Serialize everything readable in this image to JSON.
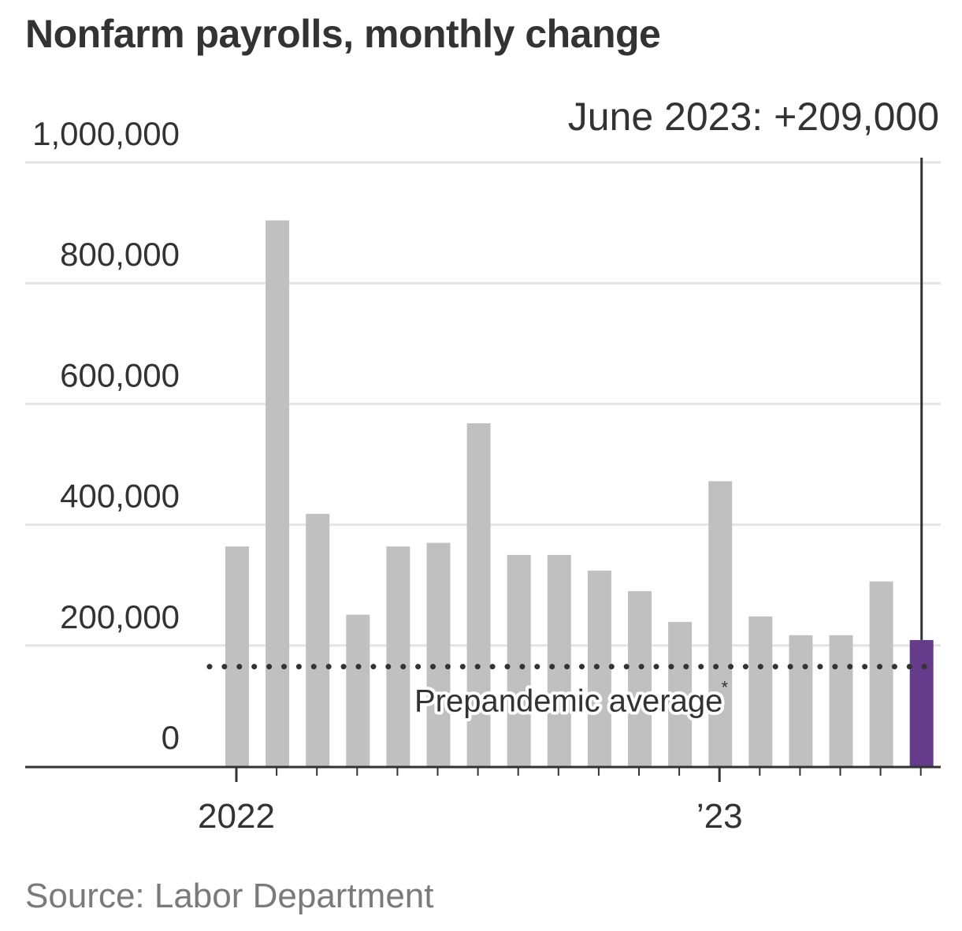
{
  "chart_data": {
    "type": "bar",
    "title": "Nonfarm payrolls, monthly change",
    "source": "Source: Labor Department",
    "categories": [
      "Jan 2022",
      "Feb 2022",
      "Mar 2022",
      "Apr 2022",
      "May 2022",
      "Jun 2022",
      "Jul 2022",
      "Aug 2022",
      "Sep 2022",
      "Oct 2022",
      "Nov 2022",
      "Dec 2022",
      "Jan 2023",
      "Feb 2023",
      "Mar 2023",
      "Apr 2023",
      "May 2023",
      "Jun 2023"
    ],
    "values": [
      364000,
      904000,
      418000,
      251000,
      364000,
      370000,
      568000,
      350000,
      350000,
      324000,
      290000,
      239000,
      472000,
      248000,
      217000,
      217000,
      306000,
      209000
    ],
    "highlight_index": 17,
    "ylim": [
      0,
      1000000
    ],
    "yticks": [
      0,
      200000,
      400000,
      600000,
      800000,
      1000000
    ],
    "ytick_labels": [
      "0",
      "200,000",
      "400,000",
      "600,000",
      "800,000",
      "1,000,000"
    ],
    "xtick_labels": [
      {
        "index": 0,
        "label": "2022"
      },
      {
        "index": 12,
        "label": "’23"
      }
    ],
    "reference_line": {
      "label": "Prepandemic average",
      "marker": "*",
      "value": 165000
    },
    "annotation": {
      "label": "June 2023: +209,000",
      "index": 17
    },
    "colors": {
      "bar": "#c0c0c0",
      "highlight": "#653b8c",
      "grid": "#e4e4e4",
      "axis": "#333333",
      "text": "#333333",
      "source": "#7a7a7a"
    },
    "grid": true
  }
}
